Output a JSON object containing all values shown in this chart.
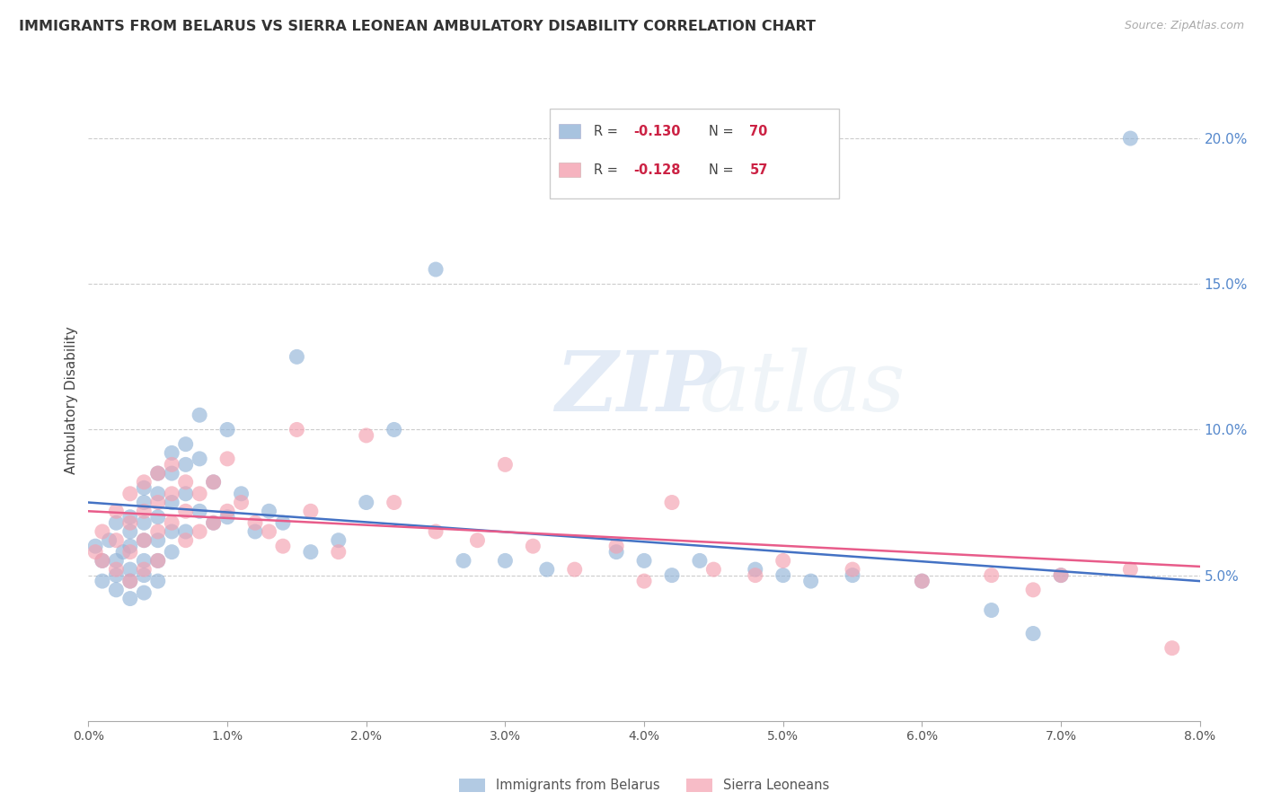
{
  "title": "IMMIGRANTS FROM BELARUS VS SIERRA LEONEAN AMBULATORY DISABILITY CORRELATION CHART",
  "source": "Source: ZipAtlas.com",
  "ylabel": "Ambulatory Disability",
  "ylabel_right_ticks": [
    "20.0%",
    "15.0%",
    "10.0%",
    "5.0%"
  ],
  "ylabel_right_values": [
    0.2,
    0.15,
    0.1,
    0.05
  ],
  "x_min": 0.0,
  "x_max": 0.08,
  "y_min": 0.0,
  "y_max": 0.22,
  "legend_label_blue": "Immigrants from Belarus",
  "legend_label_pink": "Sierra Leoneans",
  "blue_color": "#92B4D8",
  "pink_color": "#F4A0B0",
  "trendline_blue": "#4472C4",
  "trendline_pink": "#E85C8A",
  "watermark_zip": "ZIP",
  "watermark_atlas": "atlas",
  "blue_scatter_x": [
    0.0005,
    0.001,
    0.001,
    0.0015,
    0.002,
    0.002,
    0.002,
    0.002,
    0.0025,
    0.003,
    0.003,
    0.003,
    0.003,
    0.003,
    0.003,
    0.004,
    0.004,
    0.004,
    0.004,
    0.004,
    0.004,
    0.004,
    0.005,
    0.005,
    0.005,
    0.005,
    0.005,
    0.005,
    0.006,
    0.006,
    0.006,
    0.006,
    0.006,
    0.007,
    0.007,
    0.007,
    0.007,
    0.008,
    0.008,
    0.008,
    0.009,
    0.009,
    0.01,
    0.01,
    0.011,
    0.012,
    0.013,
    0.014,
    0.015,
    0.016,
    0.018,
    0.02,
    0.022,
    0.025,
    0.027,
    0.03,
    0.033,
    0.038,
    0.04,
    0.042,
    0.044,
    0.048,
    0.05,
    0.052,
    0.055,
    0.06,
    0.065,
    0.068,
    0.07,
    0.075
  ],
  "blue_scatter_y": [
    0.06,
    0.055,
    0.048,
    0.062,
    0.068,
    0.055,
    0.05,
    0.045,
    0.058,
    0.065,
    0.07,
    0.06,
    0.052,
    0.048,
    0.042,
    0.08,
    0.075,
    0.068,
    0.062,
    0.055,
    0.05,
    0.044,
    0.085,
    0.078,
    0.07,
    0.062,
    0.055,
    0.048,
    0.092,
    0.085,
    0.075,
    0.065,
    0.058,
    0.095,
    0.088,
    0.078,
    0.065,
    0.105,
    0.09,
    0.072,
    0.082,
    0.068,
    0.1,
    0.07,
    0.078,
    0.065,
    0.072,
    0.068,
    0.125,
    0.058,
    0.062,
    0.075,
    0.1,
    0.155,
    0.055,
    0.055,
    0.052,
    0.058,
    0.055,
    0.05,
    0.055,
    0.052,
    0.05,
    0.048,
    0.05,
    0.048,
    0.038,
    0.03,
    0.05,
    0.2
  ],
  "pink_scatter_x": [
    0.0005,
    0.001,
    0.001,
    0.002,
    0.002,
    0.002,
    0.003,
    0.003,
    0.003,
    0.003,
    0.004,
    0.004,
    0.004,
    0.004,
    0.005,
    0.005,
    0.005,
    0.005,
    0.006,
    0.006,
    0.006,
    0.007,
    0.007,
    0.007,
    0.008,
    0.008,
    0.009,
    0.009,
    0.01,
    0.01,
    0.011,
    0.012,
    0.013,
    0.014,
    0.015,
    0.016,
    0.018,
    0.02,
    0.022,
    0.025,
    0.028,
    0.03,
    0.032,
    0.035,
    0.038,
    0.04,
    0.042,
    0.045,
    0.048,
    0.05,
    0.055,
    0.06,
    0.065,
    0.068,
    0.07,
    0.075,
    0.078
  ],
  "pink_scatter_y": [
    0.058,
    0.065,
    0.055,
    0.072,
    0.062,
    0.052,
    0.078,
    0.068,
    0.058,
    0.048,
    0.082,
    0.072,
    0.062,
    0.052,
    0.085,
    0.075,
    0.065,
    0.055,
    0.088,
    0.078,
    0.068,
    0.082,
    0.072,
    0.062,
    0.078,
    0.065,
    0.082,
    0.068,
    0.09,
    0.072,
    0.075,
    0.068,
    0.065,
    0.06,
    0.1,
    0.072,
    0.058,
    0.098,
    0.075,
    0.065,
    0.062,
    0.088,
    0.06,
    0.052,
    0.06,
    0.048,
    0.075,
    0.052,
    0.05,
    0.055,
    0.052,
    0.048,
    0.05,
    0.045,
    0.05,
    0.052,
    0.025
  ]
}
